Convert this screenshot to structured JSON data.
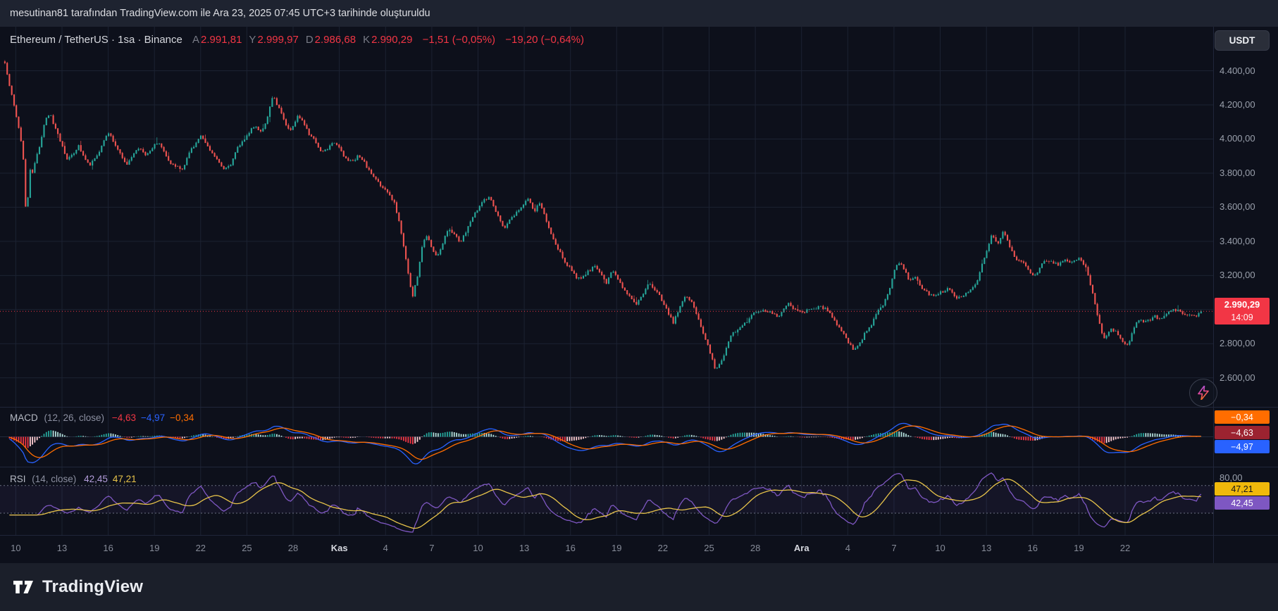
{
  "attribution": {
    "text": "mesutinan81 tarafından TradingView.com ile Ara 23, 2025 07:45 UTC+3 tarihinde oluşturuldu"
  },
  "header": {
    "symbol": "Ethereum / TetherUS · 1sa · Binance",
    "ohlc": [
      {
        "label": "A",
        "value": "2.991,81"
      },
      {
        "label": "Y",
        "value": "2.999,97"
      },
      {
        "label": "D",
        "value": "2.986,68"
      },
      {
        "label": "K",
        "value": "2.990,29"
      }
    ],
    "change_bar": "−1,51 (−0,05%)",
    "change_total": "−19,20 (−0,64%)",
    "value_color": "#f23645"
  },
  "currency_button": {
    "label": "USDT"
  },
  "price_axis": {
    "ticks": [
      {
        "label": "4.400,00",
        "value": 4400
      },
      {
        "label": "4.200,00",
        "value": 4200
      },
      {
        "label": "4.000,00",
        "value": 4000
      },
      {
        "label": "3.800,00",
        "value": 3800
      },
      {
        "label": "3.600,00",
        "value": 3600
      },
      {
        "label": "3.400,00",
        "value": 3400
      },
      {
        "label": "3.200,00",
        "value": 3200
      },
      {
        "label": "3.000,00",
        "value": 3000
      },
      {
        "label": "2.800,00",
        "value": 2800
      },
      {
        "label": "2.600,00",
        "value": 2600
      }
    ],
    "last_price": {
      "label": "2.990,29",
      "countdown": "14:09",
      "value": 2990.29,
      "bg": "#f23645"
    }
  },
  "macd_panel": {
    "title": "MACD",
    "params": "(12, 26, close)",
    "values": [
      {
        "text": "−4,63",
        "color": "#f23645"
      },
      {
        "text": "−4,97",
        "color": "#2962ff"
      },
      {
        "text": "−0,34",
        "color": "#ff6d00"
      }
    ],
    "axis_labels": [
      {
        "text": "−0,34",
        "bg": "#ff6d00",
        "fg": "#ffffff"
      },
      {
        "text": "−4,63",
        "bg": "#9c2330",
        "fg": "#ffffff"
      },
      {
        "text": "−4,97",
        "bg": "#2962ff",
        "fg": "#ffffff"
      }
    ]
  },
  "rsi_panel": {
    "title": "RSI",
    "params": "(14, close)",
    "values": [
      {
        "text": "42,45",
        "color": "#b39ddb"
      },
      {
        "text": "47,21",
        "color": "#e8c44a"
      }
    ],
    "axis_labels": [
      {
        "text": "80,00",
        "bg": "",
        "fg": "#9aa0ac"
      },
      {
        "text": "47,21",
        "bg": "#f0b90b",
        "fg": "#14151a"
      },
      {
        "text": "42,45",
        "bg": "#7e57c2",
        "fg": "#ffffff"
      }
    ]
  },
  "time_axis": {
    "labels": [
      {
        "t": "10"
      },
      {
        "t": "13"
      },
      {
        "t": "16"
      },
      {
        "t": "19"
      },
      {
        "t": "22"
      },
      {
        "t": "25"
      },
      {
        "t": "28"
      },
      {
        "t": "Kas",
        "month": true
      },
      {
        "t": "4"
      },
      {
        "t": "7"
      },
      {
        "t": "10"
      },
      {
        "t": "13"
      },
      {
        "t": "16"
      },
      {
        "t": "19"
      },
      {
        "t": "22"
      },
      {
        "t": "25"
      },
      {
        "t": "28"
      },
      {
        "t": "Ara",
        "month": true
      },
      {
        "t": "4"
      },
      {
        "t": "7"
      },
      {
        "t": "10"
      },
      {
        "t": "13"
      },
      {
        "t": "16"
      },
      {
        "t": "19"
      },
      {
        "t": "22"
      }
    ]
  },
  "footer": {
    "brand": "TradingView"
  },
  "colors": {
    "up": "#26a69a",
    "down": "#ef5350",
    "macd_line": "#2962ff",
    "signal_line": "#ff6d00",
    "hist_up": "#26a69a",
    "hist_up_fade": "#b2dfdb",
    "hist_dn": "#f23645",
    "hist_dn_fade": "#ffcdd2",
    "rsi_line": "#7e57c2",
    "rsi_ma": "#e8c44a",
    "last_price": "#f23645",
    "grid": "#1c2232"
  },
  "chart_data": {
    "type": "candlestick",
    "title": "Ethereum / TetherUS · 1sa · Binance",
    "yrange": [
      2430,
      4658
    ],
    "price_ticks": [
      2600,
      2800,
      3000,
      3200,
      3400,
      3600,
      3800,
      4000,
      4200,
      4400
    ],
    "last": 2990.29,
    "indicators": {
      "macd": {
        "fast": 12,
        "slow": 26,
        "signal": 9,
        "last_macd": -4.97,
        "last_signal": -0.34,
        "last_hist": -4.63
      },
      "rsi": {
        "length": 14,
        "last": 42.45,
        "ma_last": 47.21,
        "levels": [
          70,
          30
        ]
      }
    },
    "path": [
      [
        0.0,
        4400
      ],
      [
        0.004,
        4435
      ],
      [
        0.008,
        4320
      ],
      [
        0.012,
        4180
      ],
      [
        0.016,
        4050
      ],
      [
        0.019,
        3920
      ],
      [
        0.022,
        3480
      ],
      [
        0.024,
        3820
      ],
      [
        0.027,
        3780
      ],
      [
        0.03,
        3900
      ],
      [
        0.034,
        4000
      ],
      [
        0.038,
        4120
      ],
      [
        0.042,
        4150
      ],
      [
        0.046,
        4060
      ],
      [
        0.05,
        3980
      ],
      [
        0.055,
        3880
      ],
      [
        0.06,
        3920
      ],
      [
        0.065,
        3980
      ],
      [
        0.07,
        3900
      ],
      [
        0.075,
        3870
      ],
      [
        0.08,
        3930
      ],
      [
        0.085,
        3990
      ],
      [
        0.09,
        4040
      ],
      [
        0.095,
        3960
      ],
      [
        0.1,
        3890
      ],
      [
        0.105,
        3860
      ],
      [
        0.11,
        3910
      ],
      [
        0.115,
        3950
      ],
      [
        0.12,
        3920
      ],
      [
        0.125,
        3970
      ],
      [
        0.13,
        4000
      ],
      [
        0.135,
        3940
      ],
      [
        0.14,
        3890
      ],
      [
        0.145,
        3850
      ],
      [
        0.15,
        3820
      ],
      [
        0.155,
        3900
      ],
      [
        0.16,
        3960
      ],
      [
        0.165,
        4010
      ],
      [
        0.17,
        3980
      ],
      [
        0.175,
        3930
      ],
      [
        0.18,
        3890
      ],
      [
        0.185,
        3850
      ],
      [
        0.19,
        3880
      ],
      [
        0.195,
        3940
      ],
      [
        0.2,
        3990
      ],
      [
        0.205,
        4050
      ],
      [
        0.21,
        4080
      ],
      [
        0.215,
        4060
      ],
      [
        0.22,
        4120
      ],
      [
        0.225,
        4240
      ],
      [
        0.23,
        4180
      ],
      [
        0.235,
        4100
      ],
      [
        0.24,
        4060
      ],
      [
        0.245,
        4140
      ],
      [
        0.25,
        4120
      ],
      [
        0.255,
        4050
      ],
      [
        0.26,
        3990
      ],
      [
        0.265,
        3930
      ],
      [
        0.27,
        3960
      ],
      [
        0.275,
        4010
      ],
      [
        0.28,
        3980
      ],
      [
        0.285,
        3900
      ],
      [
        0.29,
        3870
      ],
      [
        0.295,
        3910
      ],
      [
        0.3,
        3860
      ],
      [
        0.305,
        3800
      ],
      [
        0.31,
        3760
      ],
      [
        0.315,
        3720
      ],
      [
        0.32,
        3680
      ],
      [
        0.325,
        3620
      ],
      [
        0.33,
        3480
      ],
      [
        0.335,
        3280
      ],
      [
        0.34,
        3080
      ],
      [
        0.344,
        3200
      ],
      [
        0.348,
        3380
      ],
      [
        0.352,
        3440
      ],
      [
        0.356,
        3380
      ],
      [
        0.36,
        3330
      ],
      [
        0.365,
        3420
      ],
      [
        0.37,
        3500
      ],
      [
        0.375,
        3450
      ],
      [
        0.38,
        3400
      ],
      [
        0.385,
        3480
      ],
      [
        0.39,
        3540
      ],
      [
        0.395,
        3590
      ],
      [
        0.4,
        3640
      ],
      [
        0.404,
        3660
      ],
      [
        0.408,
        3580
      ],
      [
        0.412,
        3520
      ],
      [
        0.416,
        3470
      ],
      [
        0.42,
        3500
      ],
      [
        0.425,
        3560
      ],
      [
        0.43,
        3620
      ],
      [
        0.435,
        3650
      ],
      [
        0.44,
        3560
      ],
      [
        0.445,
        3620
      ],
      [
        0.45,
        3520
      ],
      [
        0.455,
        3420
      ],
      [
        0.46,
        3340
      ],
      [
        0.465,
        3280
      ],
      [
        0.47,
        3250
      ],
      [
        0.475,
        3200
      ],
      [
        0.48,
        3170
      ],
      [
        0.485,
        3220
      ],
      [
        0.49,
        3250
      ],
      [
        0.495,
        3190
      ],
      [
        0.5,
        3150
      ],
      [
        0.505,
        3220
      ],
      [
        0.51,
        3180
      ],
      [
        0.515,
        3120
      ],
      [
        0.52,
        3080
      ],
      [
        0.525,
        3050
      ],
      [
        0.53,
        3100
      ],
      [
        0.535,
        3140
      ],
      [
        0.54,
        3100
      ],
      [
        0.545,
        3050
      ],
      [
        0.55,
        3000
      ],
      [
        0.555,
        2930
      ],
      [
        0.56,
        3020
      ],
      [
        0.565,
        3090
      ],
      [
        0.57,
        3040
      ],
      [
        0.575,
        2960
      ],
      [
        0.58,
        2860
      ],
      [
        0.585,
        2760
      ],
      [
        0.59,
        2640
      ],
      [
        0.594,
        2700
      ],
      [
        0.598,
        2780
      ],
      [
        0.602,
        2840
      ],
      [
        0.61,
        2890
      ],
      [
        0.618,
        2940
      ],
      [
        0.626,
        2990
      ],
      [
        0.634,
        3010
      ],
      [
        0.642,
        2960
      ],
      [
        0.65,
        3020
      ],
      [
        0.658,
        2985
      ],
      [
        0.666,
        3005
      ],
      [
        0.674,
        3030
      ],
      [
        0.682,
        3000
      ],
      [
        0.69,
        2930
      ],
      [
        0.698,
        2820
      ],
      [
        0.703,
        2760
      ],
      [
        0.708,
        2800
      ],
      [
        0.714,
        2880
      ],
      [
        0.72,
        2950
      ],
      [
        0.726,
        3020
      ],
      [
        0.732,
        3090
      ],
      [
        0.738,
        3230
      ],
      [
        0.742,
        3270
      ],
      [
        0.746,
        3210
      ],
      [
        0.75,
        3150
      ],
      [
        0.755,
        3200
      ],
      [
        0.76,
        3140
      ],
      [
        0.765,
        3090
      ],
      [
        0.77,
        3070
      ],
      [
        0.776,
        3100
      ],
      [
        0.782,
        3120
      ],
      [
        0.788,
        3090
      ],
      [
        0.794,
        3110
      ],
      [
        0.8,
        3150
      ],
      [
        0.806,
        3200
      ],
      [
        0.812,
        3310
      ],
      [
        0.817,
        3420
      ],
      [
        0.822,
        3380
      ],
      [
        0.827,
        3450
      ],
      [
        0.832,
        3380
      ],
      [
        0.837,
        3320
      ],
      [
        0.842,
        3300
      ],
      [
        0.848,
        3260
      ],
      [
        0.854,
        3210
      ],
      [
        0.86,
        3260
      ],
      [
        0.866,
        3300
      ],
      [
        0.872,
        3280
      ],
      [
        0.878,
        3300
      ],
      [
        0.884,
        3290
      ],
      [
        0.89,
        3310
      ],
      [
        0.895,
        3260
      ],
      [
        0.9,
        3120
      ],
      [
        0.905,
        2960
      ],
      [
        0.91,
        2840
      ],
      [
        0.915,
        2900
      ],
      [
        0.92,
        2880
      ],
      [
        0.925,
        2850
      ],
      [
        0.93,
        2800
      ],
      [
        0.935,
        2900
      ],
      [
        0.94,
        2950
      ],
      [
        0.946,
        2930
      ],
      [
        0.952,
        2950
      ],
      [
        0.958,
        2940
      ],
      [
        0.964,
        2960
      ],
      [
        0.97,
        2980
      ],
      [
        0.976,
        2960
      ],
      [
        0.982,
        2985
      ],
      [
        0.99,
        2990.29
      ]
    ]
  }
}
